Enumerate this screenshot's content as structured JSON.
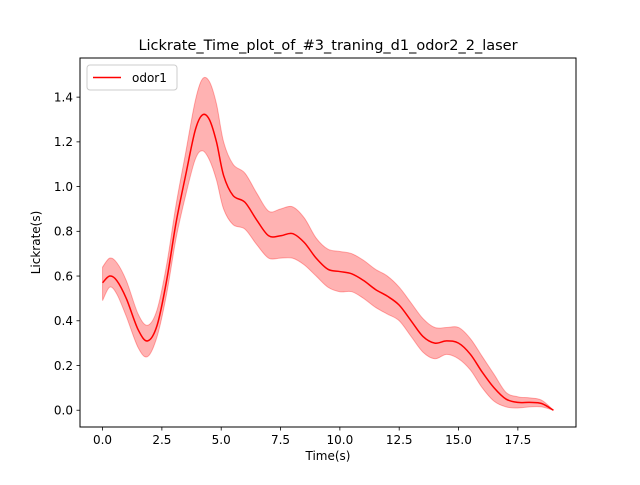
{
  "chart_data": {
    "type": "line",
    "title": "Lickrate_Time_plot_of_#3_traning_d1_odor2_2_laser",
    "xlabel": "Time(s)",
    "ylabel": "Lickrate(s)",
    "xlim": [
      -0.95,
      19.95
    ],
    "ylim": [
      -0.075,
      1.575
    ],
    "xticks": [
      0.0,
      2.5,
      5.0,
      7.5,
      10.0,
      12.5,
      15.0,
      17.5
    ],
    "xtick_labels": [
      "0.0",
      "2.5",
      "5.0",
      "7.5",
      "10.0",
      "12.5",
      "15.0",
      "17.5"
    ],
    "yticks": [
      0.0,
      0.2,
      0.4,
      0.6,
      0.8,
      1.0,
      1.2,
      1.4
    ],
    "ytick_labels": [
      "0.0",
      "0.2",
      "0.4",
      "0.6",
      "0.8",
      "1.0",
      "1.2",
      "1.4"
    ],
    "grid": false,
    "legend_position": "top-left",
    "series": [
      {
        "name": "odor1",
        "color": "#ff0000",
        "band_color": "#ff0000",
        "band_opacity": 0.3,
        "x": [
          0.0,
          0.3,
          0.6,
          1.0,
          1.5,
          1.9,
          2.3,
          2.7,
          3.1,
          3.5,
          3.9,
          4.2,
          4.5,
          4.8,
          5.1,
          5.5,
          6.0,
          6.5,
          7.0,
          7.5,
          8.0,
          8.5,
          9.0,
          9.5,
          10.0,
          10.5,
          11.0,
          11.5,
          12.0,
          12.5,
          13.0,
          13.5,
          14.0,
          14.5,
          15.0,
          15.5,
          16.0,
          16.5,
          17.0,
          17.5,
          18.0,
          18.5,
          19.0
        ],
        "y": [
          0.57,
          0.6,
          0.58,
          0.5,
          0.36,
          0.31,
          0.38,
          0.58,
          0.84,
          1.05,
          1.25,
          1.32,
          1.3,
          1.2,
          1.05,
          0.96,
          0.93,
          0.85,
          0.78,
          0.78,
          0.79,
          0.75,
          0.68,
          0.63,
          0.62,
          0.61,
          0.58,
          0.54,
          0.51,
          0.47,
          0.4,
          0.33,
          0.3,
          0.31,
          0.3,
          0.25,
          0.17,
          0.1,
          0.05,
          0.035,
          0.035,
          0.03,
          0.0
        ],
        "lower": [
          0.49,
          0.55,
          0.52,
          0.42,
          0.28,
          0.24,
          0.33,
          0.52,
          0.77,
          0.96,
          1.12,
          1.16,
          1.12,
          1.03,
          0.9,
          0.83,
          0.81,
          0.74,
          0.68,
          0.68,
          0.68,
          0.65,
          0.6,
          0.55,
          0.53,
          0.53,
          0.5,
          0.46,
          0.43,
          0.4,
          0.33,
          0.26,
          0.23,
          0.25,
          0.23,
          0.18,
          0.1,
          0.04,
          0.015,
          0.01,
          0.015,
          0.015,
          0.0
        ],
        "upper": [
          0.64,
          0.68,
          0.66,
          0.58,
          0.43,
          0.38,
          0.45,
          0.65,
          0.92,
          1.15,
          1.38,
          1.48,
          1.47,
          1.37,
          1.2,
          1.1,
          1.06,
          0.97,
          0.89,
          0.9,
          0.91,
          0.86,
          0.77,
          0.72,
          0.71,
          0.7,
          0.67,
          0.63,
          0.6,
          0.55,
          0.48,
          0.41,
          0.37,
          0.37,
          0.37,
          0.32,
          0.24,
          0.16,
          0.08,
          0.06,
          0.055,
          0.045,
          0.0
        ]
      }
    ]
  }
}
